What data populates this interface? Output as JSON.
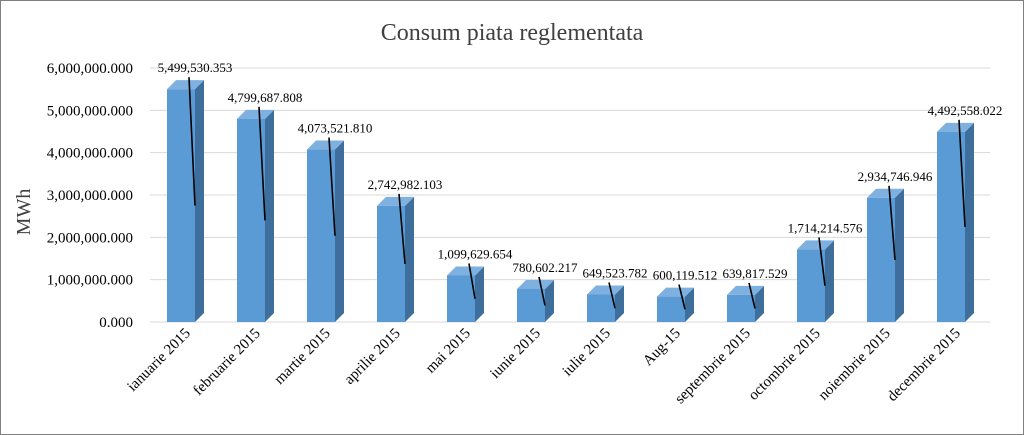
{
  "chart_data": {
    "type": "bar",
    "title": "Consum piata reglementata",
    "xlabel": "",
    "ylabel": "MWh",
    "ylim": [
      0,
      6000000
    ],
    "y_ticks": [
      "0.000",
      "1,000,000.000",
      "2,000,000.000",
      "3,000,000.000",
      "4,000,000.000",
      "5,000,000.000",
      "6,000,000.000"
    ],
    "y_tick_values": [
      0,
      1000000,
      2000000,
      3000000,
      4000000,
      5000000,
      6000000
    ],
    "grid": true,
    "legend": "none",
    "categories": [
      "ianuarie 2015",
      "februarie 2015",
      "martie 2015",
      "aprilie 2015",
      "mai 2015",
      "iunie 2015",
      "iulie 2015",
      "Aug-15",
      "septembrie 2015",
      "octombrie 2015",
      "noiembrie 2015",
      "decembrie 2015"
    ],
    "values": [
      5499530.353,
      4799687.808,
      4073521.81,
      2742982.103,
      1099629.654,
      780602.217,
      649523.782,
      600119.512,
      639817.529,
      1714214.576,
      2934746.946,
      4492558.022
    ],
    "data_labels": [
      "5,499,530.353",
      "4,799,687.808",
      "4,073,521.810",
      "2,742,982.103",
      "1,099,629.654",
      "780,602.217",
      "649,523.782",
      "600,119.512",
      "639,817.529",
      "1,714,214.576",
      "2,934,746.946",
      "4,492,558.022"
    ],
    "colors": {
      "bar_front": "#5b9bd5",
      "bar_side": "#3e6f9c",
      "bar_top": "#7fb1e0"
    }
  }
}
